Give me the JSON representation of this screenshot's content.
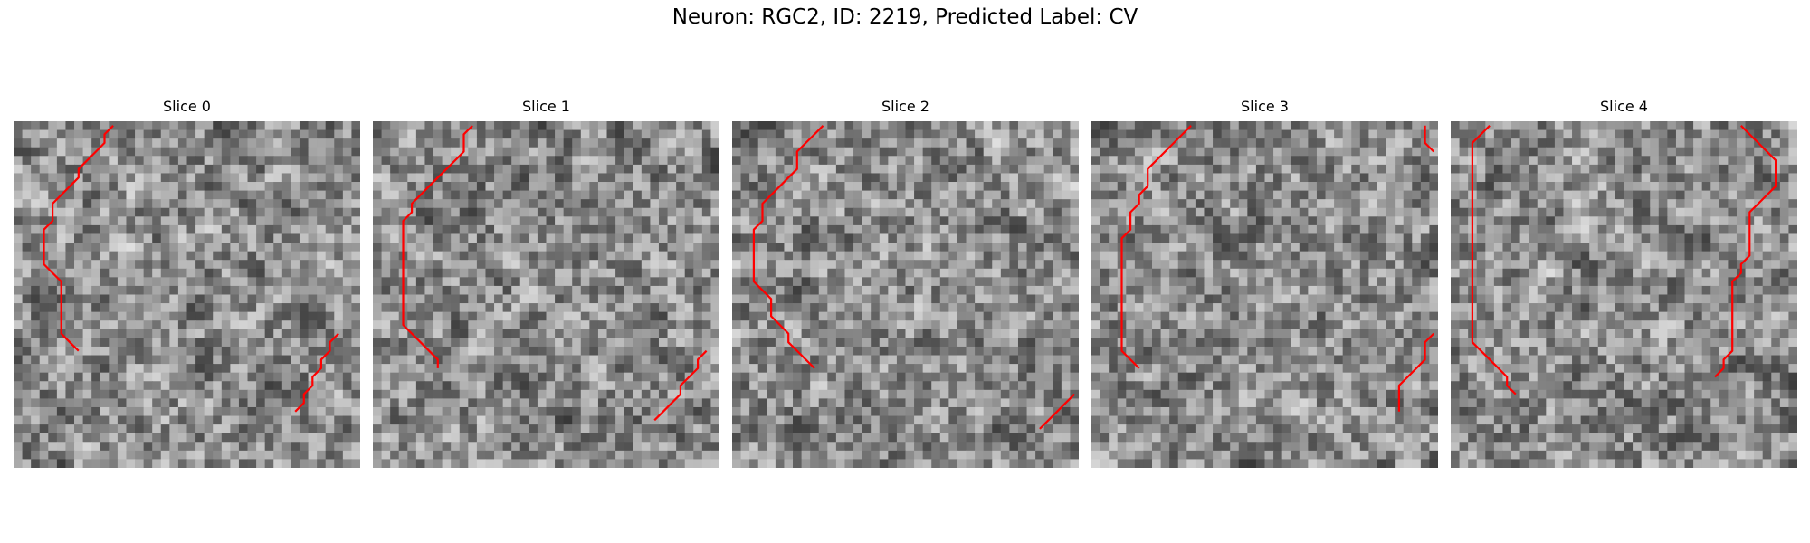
{
  "figure": {
    "title": "Neuron: RGC2, ID: 2219, Predicted Label: CV"
  },
  "style": {
    "contour_color": "#ff0000",
    "colormap": "gray"
  },
  "panels": [
    {
      "title": "Slice 0",
      "seed": 11,
      "contours": [
        [
          [
            11,
            0
          ],
          [
            10,
            1
          ],
          [
            10,
            2
          ],
          [
            9,
            3
          ],
          [
            8,
            4
          ],
          [
            7,
            5
          ],
          [
            7,
            6
          ],
          [
            6,
            7
          ],
          [
            5,
            8
          ],
          [
            4,
            9
          ],
          [
            4,
            10
          ],
          [
            4,
            11
          ],
          [
            3,
            12
          ],
          [
            3,
            13
          ],
          [
            3,
            14
          ],
          [
            3,
            15
          ],
          [
            3,
            16
          ],
          [
            4,
            17
          ],
          [
            5,
            18
          ],
          [
            5,
            19
          ],
          [
            5,
            20
          ],
          [
            5,
            21
          ],
          [
            5,
            22
          ],
          [
            5,
            23
          ],
          [
            5,
            24
          ],
          [
            6,
            25
          ],
          [
            7,
            26
          ]
        ],
        [
          [
            37,
            24
          ],
          [
            36,
            25
          ],
          [
            36,
            26
          ],
          [
            35,
            27
          ],
          [
            35,
            28
          ],
          [
            34,
            29
          ],
          [
            34,
            30
          ],
          [
            33,
            31
          ],
          [
            33,
            32
          ],
          [
            32,
            33
          ]
        ]
      ]
    },
    {
      "title": "Slice 1",
      "seed": 23,
      "contours": [
        [
          [
            11,
            0
          ],
          [
            10,
            1
          ],
          [
            10,
            2
          ],
          [
            10,
            3
          ],
          [
            9,
            4
          ],
          [
            8,
            5
          ],
          [
            7,
            6
          ],
          [
            6,
            7
          ],
          [
            5,
            8
          ],
          [
            4,
            9
          ],
          [
            4,
            10
          ],
          [
            3,
            11
          ],
          [
            3,
            12
          ],
          [
            3,
            13
          ],
          [
            3,
            14
          ],
          [
            3,
            15
          ],
          [
            3,
            16
          ],
          [
            3,
            17
          ],
          [
            3,
            18
          ],
          [
            3,
            19
          ],
          [
            3,
            20
          ],
          [
            3,
            21
          ],
          [
            3,
            22
          ],
          [
            3,
            23
          ],
          [
            4,
            24
          ],
          [
            5,
            25
          ],
          [
            6,
            26
          ],
          [
            7,
            27
          ],
          [
            7,
            28
          ]
        ],
        [
          [
            38,
            26
          ],
          [
            37,
            27
          ],
          [
            37,
            28
          ],
          [
            36,
            29
          ],
          [
            35,
            30
          ],
          [
            35,
            31
          ],
          [
            34,
            32
          ],
          [
            33,
            33
          ],
          [
            32,
            34
          ]
        ]
      ]
    },
    {
      "title": "Slice 2",
      "seed": 37,
      "contours": [
        [
          [
            10,
            0
          ],
          [
            9,
            1
          ],
          [
            8,
            2
          ],
          [
            7,
            3
          ],
          [
            7,
            4
          ],
          [
            7,
            5
          ],
          [
            6,
            6
          ],
          [
            5,
            7
          ],
          [
            4,
            8
          ],
          [
            3,
            9
          ],
          [
            3,
            10
          ],
          [
            3,
            11
          ],
          [
            2,
            12
          ],
          [
            2,
            13
          ],
          [
            2,
            14
          ],
          [
            2,
            15
          ],
          [
            2,
            16
          ],
          [
            2,
            17
          ],
          [
            2,
            18
          ],
          [
            3,
            19
          ],
          [
            4,
            20
          ],
          [
            4,
            21
          ],
          [
            4,
            22
          ],
          [
            5,
            23
          ],
          [
            6,
            24
          ],
          [
            6,
            25
          ],
          [
            7,
            26
          ],
          [
            8,
            27
          ],
          [
            9,
            28
          ]
        ],
        [
          [
            39,
            31
          ],
          [
            38,
            32
          ],
          [
            37,
            33
          ],
          [
            36,
            34
          ],
          [
            35,
            35
          ]
        ]
      ]
    },
    {
      "title": "Slice 3",
      "seed": 53,
      "contours": [
        [
          [
            11,
            0
          ],
          [
            10,
            1
          ],
          [
            9,
            2
          ],
          [
            8,
            3
          ],
          [
            7,
            4
          ],
          [
            6,
            5
          ],
          [
            6,
            6
          ],
          [
            6,
            7
          ],
          [
            5,
            8
          ],
          [
            5,
            9
          ],
          [
            4,
            10
          ],
          [
            4,
            11
          ],
          [
            4,
            12
          ],
          [
            3,
            13
          ],
          [
            3,
            14
          ],
          [
            3,
            15
          ],
          [
            3,
            16
          ],
          [
            3,
            17
          ],
          [
            3,
            18
          ],
          [
            3,
            19
          ],
          [
            3,
            20
          ],
          [
            3,
            21
          ],
          [
            3,
            22
          ],
          [
            3,
            23
          ],
          [
            3,
            24
          ],
          [
            3,
            25
          ],
          [
            3,
            26
          ],
          [
            4,
            27
          ],
          [
            5,
            28
          ]
        ],
        [
          [
            38,
            0
          ],
          [
            38,
            1
          ],
          [
            38,
            2
          ],
          [
            39,
            3
          ]
        ],
        [
          [
            39,
            24
          ],
          [
            38,
            25
          ],
          [
            38,
            26
          ],
          [
            38,
            27
          ],
          [
            37,
            28
          ],
          [
            36,
            29
          ],
          [
            35,
            30
          ],
          [
            35,
            31
          ],
          [
            35,
            32
          ],
          [
            35,
            33
          ]
        ]
      ]
    },
    {
      "title": "Slice 4",
      "seed": 71,
      "contours": [
        [
          [
            4,
            0
          ],
          [
            3,
            1
          ],
          [
            2,
            2
          ],
          [
            2,
            3
          ],
          [
            2,
            4
          ],
          [
            2,
            5
          ],
          [
            2,
            6
          ],
          [
            2,
            7
          ],
          [
            2,
            8
          ],
          [
            2,
            9
          ],
          [
            2,
            10
          ],
          [
            2,
            11
          ],
          [
            2,
            12
          ],
          [
            2,
            13
          ],
          [
            2,
            14
          ],
          [
            2,
            15
          ],
          [
            2,
            16
          ],
          [
            2,
            17
          ],
          [
            2,
            18
          ],
          [
            2,
            19
          ],
          [
            2,
            20
          ],
          [
            2,
            21
          ],
          [
            2,
            22
          ],
          [
            2,
            23
          ],
          [
            2,
            24
          ],
          [
            2,
            25
          ],
          [
            3,
            26
          ],
          [
            4,
            27
          ],
          [
            5,
            28
          ],
          [
            6,
            29
          ],
          [
            6,
            30
          ],
          [
            7,
            31
          ]
        ],
        [
          [
            33,
            0
          ],
          [
            34,
            1
          ],
          [
            35,
            2
          ],
          [
            36,
            3
          ],
          [
            37,
            4
          ],
          [
            37,
            5
          ],
          [
            37,
            6
          ],
          [
            37,
            7
          ],
          [
            36,
            8
          ],
          [
            35,
            9
          ],
          [
            34,
            10
          ],
          [
            34,
            11
          ],
          [
            34,
            12
          ],
          [
            34,
            13
          ],
          [
            34,
            14
          ],
          [
            34,
            15
          ],
          [
            33,
            16
          ],
          [
            33,
            17
          ],
          [
            32,
            18
          ],
          [
            32,
            19
          ],
          [
            32,
            20
          ],
          [
            32,
            21
          ],
          [
            32,
            22
          ],
          [
            32,
            23
          ],
          [
            32,
            24
          ],
          [
            32,
            25
          ],
          [
            32,
            26
          ],
          [
            31,
            27
          ],
          [
            31,
            28
          ],
          [
            30,
            29
          ]
        ]
      ]
    }
  ]
}
